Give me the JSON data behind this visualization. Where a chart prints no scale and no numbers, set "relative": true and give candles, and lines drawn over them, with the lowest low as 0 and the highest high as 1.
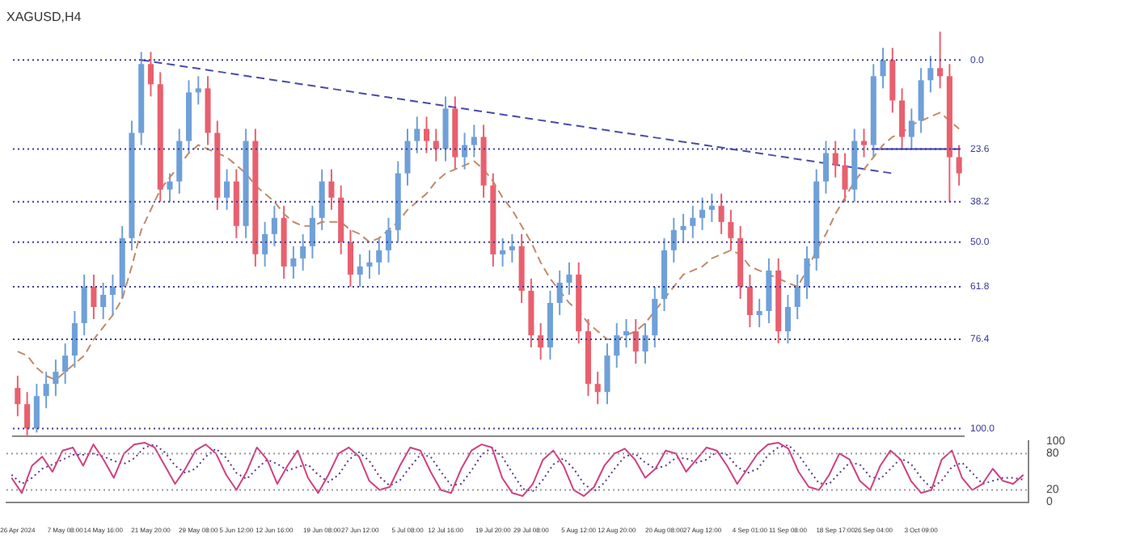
{
  "chart_data": [
    {
      "type": "candlestick",
      "title": "XAGUSD,H4",
      "relative": true,
      "tick_labels": "x",
      "categories": [
        "26 Apr 2024",
        null,
        null,
        null,
        null,
        "7 May 08:00",
        null,
        null,
        null,
        "14 May 16:00",
        null,
        null,
        null,
        null,
        "21 May 20:00",
        null,
        null,
        null,
        null,
        "29 May 08:00",
        null,
        null,
        null,
        "5 Jun 12:00",
        null,
        null,
        null,
        "12 Jun 16:00",
        null,
        null,
        null,
        null,
        "19 Jun 08:00",
        null,
        null,
        null,
        "27 Jun 12:00",
        null,
        null,
        null,
        null,
        "5 Jul 08:00",
        null,
        null,
        null,
        "12 Jul 16:00",
        null,
        null,
        null,
        null,
        "19 Jul 20:00",
        null,
        null,
        null,
        "29 Jul 08:00",
        null,
        null,
        null,
        null,
        "5 Aug 12:00",
        null,
        null,
        null,
        "12 Aug 20:00",
        null,
        null,
        null,
        null,
        "20 Aug 08:00",
        null,
        null,
        null,
        "27 Aug 12:00",
        null,
        null,
        null,
        null,
        "4 Sep 01:00",
        null,
        null,
        null,
        "11 Sep 08:00",
        null,
        null,
        null,
        null,
        "18 Sep 17:00",
        null,
        null,
        null,
        "26 Sep 04:00",
        null,
        null,
        null,
        null,
        "3 Oct 09:00",
        null,
        null,
        null,
        null
      ],
      "ohlc": [
        [
          0.12,
          0.15,
          0.05,
          0.08
        ],
        [
          0.08,
          0.11,
          0,
          0.02
        ],
        [
          0.02,
          0.13,
          0.01,
          0.1
        ],
        [
          0.1,
          0.16,
          0.07,
          0.13
        ],
        [
          0.13,
          0.19,
          0.1,
          0.16
        ],
        [
          0.16,
          0.23,
          0.13,
          0.2
        ],
        [
          0.2,
          0.31,
          0.17,
          0.28
        ],
        [
          0.28,
          0.4,
          0.25,
          0.37
        ],
        [
          0.37,
          0.4,
          0.29,
          0.32
        ],
        [
          0.32,
          0.38,
          0.29,
          0.35
        ],
        [
          0.35,
          0.4,
          0.3,
          0.37
        ],
        [
          0.37,
          0.52,
          0.34,
          0.49
        ],
        [
          0.49,
          0.78,
          0.46,
          0.75
        ],
        [
          0.75,
          0.95,
          0.72,
          0.92
        ],
        [
          0.92,
          0.95,
          0.84,
          0.87
        ],
        [
          0.87,
          0.9,
          0.58,
          0.61
        ],
        [
          0.61,
          0.65,
          0.58,
          0.63
        ],
        [
          0.63,
          0.76,
          0.6,
          0.73
        ],
        [
          0.73,
          0.88,
          0.7,
          0.85
        ],
        [
          0.85,
          0.89,
          0.82,
          0.86
        ],
        [
          0.86,
          0.89,
          0.72,
          0.75
        ],
        [
          0.75,
          0.78,
          0.56,
          0.59
        ],
        [
          0.59,
          0.66,
          0.56,
          0.63
        ],
        [
          0.63,
          0.66,
          0.49,
          0.52
        ],
        [
          0.52,
          0.76,
          0.49,
          0.73
        ],
        [
          0.73,
          0.76,
          0.42,
          0.45
        ],
        [
          0.45,
          0.53,
          0.42,
          0.5
        ],
        [
          0.5,
          0.57,
          0.47,
          0.54
        ],
        [
          0.54,
          0.57,
          0.39,
          0.42
        ],
        [
          0.42,
          0.47,
          0.39,
          0.44
        ],
        [
          0.44,
          0.5,
          0.41,
          0.47
        ],
        [
          0.47,
          0.57,
          0.44,
          0.54
        ],
        [
          0.54,
          0.66,
          0.51,
          0.63
        ],
        [
          0.63,
          0.66,
          0.56,
          0.59
        ],
        [
          0.59,
          0.62,
          0.45,
          0.48
        ],
        [
          0.48,
          0.51,
          0.37,
          0.4
        ],
        [
          0.4,
          0.45,
          0.37,
          0.42
        ],
        [
          0.42,
          0.46,
          0.39,
          0.43
        ],
        [
          0.43,
          0.49,
          0.4,
          0.46
        ],
        [
          0.46,
          0.54,
          0.43,
          0.51
        ],
        [
          0.51,
          0.68,
          0.48,
          0.65
        ],
        [
          0.65,
          0.76,
          0.62,
          0.73
        ],
        [
          0.73,
          0.79,
          0.7,
          0.76
        ],
        [
          0.76,
          0.79,
          0.7,
          0.73
        ],
        [
          0.73,
          0.76,
          0.68,
          0.71
        ],
        [
          0.71,
          0.84,
          0.68,
          0.81
        ],
        [
          0.81,
          0.84,
          0.66,
          0.69
        ],
        [
          0.69,
          0.75,
          0.66,
          0.72
        ],
        [
          0.72,
          0.77,
          0.69,
          0.74
        ],
        [
          0.74,
          0.77,
          0.59,
          0.62
        ],
        [
          0.62,
          0.65,
          0.42,
          0.45
        ],
        [
          0.45,
          0.49,
          0.42,
          0.46
        ],
        [
          0.46,
          0.5,
          0.43,
          0.47
        ],
        [
          0.47,
          0.5,
          0.33,
          0.36
        ],
        [
          0.36,
          0.39,
          0.22,
          0.25
        ],
        [
          0.25,
          0.28,
          0.19,
          0.22
        ],
        [
          0.22,
          0.36,
          0.19,
          0.33
        ],
        [
          0.33,
          0.41,
          0.3,
          0.38
        ],
        [
          0.38,
          0.43,
          0.35,
          0.4
        ],
        [
          0.4,
          0.43,
          0.23,
          0.26
        ],
        [
          0.26,
          0.29,
          0.1,
          0.13
        ],
        [
          0.13,
          0.16,
          0.08,
          0.11
        ],
        [
          0.11,
          0.23,
          0.08,
          0.2
        ],
        [
          0.2,
          0.28,
          0.17,
          0.25
        ],
        [
          0.25,
          0.29,
          0.22,
          0.26
        ],
        [
          0.26,
          0.29,
          0.18,
          0.21
        ],
        [
          0.21,
          0.28,
          0.18,
          0.25
        ],
        [
          0.25,
          0.37,
          0.22,
          0.34
        ],
        [
          0.34,
          0.49,
          0.31,
          0.46
        ],
        [
          0.46,
          0.54,
          0.43,
          0.51
        ],
        [
          0.51,
          0.55,
          0.48,
          0.52
        ],
        [
          0.52,
          0.57,
          0.49,
          0.54
        ],
        [
          0.54,
          0.59,
          0.51,
          0.56
        ],
        [
          0.56,
          0.6,
          0.53,
          0.57
        ],
        [
          0.57,
          0.6,
          0.5,
          0.53
        ],
        [
          0.53,
          0.56,
          0.46,
          0.49
        ],
        [
          0.49,
          0.52,
          0.34,
          0.37
        ],
        [
          0.37,
          0.4,
          0.27,
          0.3
        ],
        [
          0.3,
          0.34,
          0.27,
          0.31
        ],
        [
          0.31,
          0.44,
          0.28,
          0.41
        ],
        [
          0.41,
          0.44,
          0.23,
          0.26
        ],
        [
          0.26,
          0.35,
          0.23,
          0.32
        ],
        [
          0.32,
          0.4,
          0.29,
          0.37
        ],
        [
          0.37,
          0.47,
          0.34,
          0.44
        ],
        [
          0.44,
          0.66,
          0.41,
          0.63
        ],
        [
          0.63,
          0.73,
          0.6,
          0.7
        ],
        [
          0.7,
          0.73,
          0.64,
          0.67
        ],
        [
          0.67,
          0.7,
          0.58,
          0.61
        ],
        [
          0.61,
          0.76,
          0.58,
          0.73
        ],
        [
          0.73,
          0.76,
          0.69,
          0.72
        ],
        [
          0.72,
          0.92,
          0.69,
          0.89
        ],
        [
          0.89,
          0.96,
          0.86,
          0.93
        ],
        [
          0.93,
          0.96,
          0.8,
          0.83
        ],
        [
          0.83,
          0.86,
          0.71,
          0.74
        ],
        [
          0.74,
          0.81,
          0.71,
          0.78
        ],
        [
          0.78,
          0.91,
          0.75,
          0.88
        ],
        [
          0.88,
          0.94,
          0.85,
          0.91
        ],
        [
          0.91,
          1,
          0.86,
          0.89
        ],
        [
          0.89,
          0.92,
          0.58,
          0.69
        ],
        [
          0.69,
          0.72,
          0.62,
          0.65
        ]
      ],
      "colors": [
        "#e8606e",
        "#e8606e",
        "#6fa0d8",
        "#6fa0d8",
        "#6fa0d8",
        "#6fa0d8",
        "#6fa0d8",
        "#6fa0d8",
        "#e8606e",
        "#6fa0d8",
        "#6fa0d8",
        "#6fa0d8",
        "#6fa0d8",
        "#6fa0d8",
        "#e8606e",
        "#e8606e",
        "#6fa0d8",
        "#6fa0d8",
        "#6fa0d8",
        "#6fa0d8",
        "#e8606e",
        "#e8606e",
        "#6fa0d8",
        "#e8606e",
        "#6fa0d8",
        "#e8606e",
        "#6fa0d8",
        "#6fa0d8",
        "#e8606e",
        "#6fa0d8",
        "#6fa0d8",
        "#6fa0d8",
        "#6fa0d8",
        "#e8606e",
        "#e8606e",
        "#e8606e",
        "#6fa0d8",
        "#6fa0d8",
        "#6fa0d8",
        "#6fa0d8",
        "#6fa0d8",
        "#6fa0d8",
        "#6fa0d8",
        "#e8606e",
        "#e8606e",
        "#6fa0d8",
        "#e8606e",
        "#6fa0d8",
        "#6fa0d8",
        "#e8606e",
        "#e8606e",
        "#6fa0d8",
        "#6fa0d8",
        "#e8606e",
        "#e8606e",
        "#e8606e",
        "#6fa0d8",
        "#6fa0d8",
        "#6fa0d8",
        "#e8606e",
        "#e8606e",
        "#e8606e",
        "#6fa0d8",
        "#6fa0d8",
        "#6fa0d8",
        "#e8606e",
        "#6fa0d8",
        "#6fa0d8",
        "#6fa0d8",
        "#6fa0d8",
        "#6fa0d8",
        "#6fa0d8",
        "#6fa0d8",
        "#6fa0d8",
        "#e8606e",
        "#e8606e",
        "#e8606e",
        "#e8606e",
        "#6fa0d8",
        "#6fa0d8",
        "#e8606e",
        "#6fa0d8",
        "#6fa0d8",
        "#6fa0d8",
        "#6fa0d8",
        "#6fa0d8",
        "#e8606e",
        "#e8606e",
        "#6fa0d8",
        "#e8606e",
        "#6fa0d8",
        "#6fa0d8",
        "#e8606e",
        "#e8606e",
        "#6fa0d8",
        "#6fa0d8",
        "#6fa0d8",
        "#e8606e",
        "#e8606e",
        "#e8606e"
      ],
      "series": [
        {
          "type": "line",
          "color": "#c08a6a",
          "line_style": "dashed",
          "values": [
            0.21,
            0.2,
            0.17,
            0.15,
            0.14,
            0.16,
            0.18,
            0.2,
            0.24,
            0.27,
            0.3,
            0.34,
            0.42,
            0.51,
            0.56,
            0.61,
            0.64,
            0.67,
            0.7,
            0.72,
            0.71,
            0.7,
            0.69,
            0.67,
            0.65,
            0.62,
            0.6,
            0.58,
            0.55,
            0.53,
            0.52,
            0.52,
            0.53,
            0.53,
            0.53,
            0.51,
            0.5,
            0.48,
            0.49,
            0.51,
            0.53,
            0.56,
            0.58,
            0.6,
            0.63,
            0.65,
            0.66,
            0.67,
            0.68,
            0.66,
            0.63,
            0.59,
            0.56,
            0.52,
            0.48,
            0.43,
            0.39,
            0.36,
            0.33,
            0.31,
            0.28,
            0.26,
            0.24,
            0.24,
            0.25,
            0.26,
            0.28,
            0.31,
            0.34,
            0.37,
            0.4,
            0.41,
            0.42,
            0.44,
            0.45,
            0.46,
            0.45,
            0.42,
            0.41,
            0.4,
            0.39,
            0.38,
            0.37,
            0.41,
            0.46,
            0.5,
            0.55,
            0.59,
            0.63,
            0.66,
            0.69,
            0.72,
            0.74,
            0.75,
            0.77,
            0.78,
            0.79,
            0.8,
            0.78,
            0.76
          ]
        },
        {
          "type": "line",
          "color": "#4a4aa8",
          "line_style": "dashed",
          "values": [
            null,
            null,
            null,
            null,
            null,
            null,
            null,
            null,
            null,
            null,
            null,
            null,
            null,
            0.93,
            null,
            null,
            null,
            null,
            null,
            null,
            null,
            null,
            null,
            null,
            null,
            null,
            null,
            null,
            null,
            null,
            null,
            null,
            null,
            null,
            null,
            null,
            null,
            null,
            null,
            null,
            null,
            null,
            null,
            null,
            null,
            null,
            null,
            null,
            null,
            null,
            null,
            null,
            null,
            null,
            null,
            null,
            null,
            null,
            null,
            null,
            null,
            null,
            null,
            null,
            null,
            null,
            null,
            null,
            null,
            null,
            null,
            null,
            null,
            null,
            null,
            null,
            null,
            null,
            null,
            null,
            null,
            null,
            null,
            null,
            null,
            null,
            null,
            null,
            null,
            null,
            null,
            null,
            0.65,
            null,
            null,
            null,
            null,
            null,
            null,
            null
          ]
        },
        {
          "type": "line",
          "color": "#3b3bbf",
          "values": [
            null,
            null,
            null,
            null,
            null,
            null,
            null,
            null,
            null,
            null,
            null,
            null,
            null,
            null,
            null,
            null,
            null,
            null,
            null,
            null,
            null,
            null,
            null,
            null,
            null,
            null,
            null,
            null,
            null,
            null,
            null,
            null,
            null,
            null,
            null,
            null,
            null,
            null,
            null,
            null,
            null,
            null,
            null,
            null,
            null,
            null,
            null,
            null,
            null,
            null,
            null,
            null,
            null,
            null,
            null,
            null,
            null,
            null,
            null,
            null,
            null,
            null,
            null,
            null,
            null,
            null,
            null,
            null,
            null,
            null,
            null,
            null,
            null,
            null,
            null,
            null,
            null,
            null,
            null,
            null,
            null,
            null,
            null,
            null,
            null,
            null,
            null,
            null,
            null,
            null,
            0.71,
            null,
            null,
            null,
            null,
            null,
            null,
            null,
            null,
            0.71
          ]
        }
      ],
      "ref_lines": [
        {
          "axis": "y",
          "value": 0.93,
          "color": "#3a3a9a",
          "line_style": "dotted"
        },
        {
          "axis": "y",
          "value": 0.71,
          "color": "#3a3a9a",
          "line_style": "dotted"
        },
        {
          "axis": "y",
          "value": 0.58,
          "color": "#3a3a9a",
          "line_style": "dotted"
        },
        {
          "axis": "y",
          "value": 0.48,
          "color": "#3a3a9a",
          "line_style": "dotted"
        },
        {
          "axis": "y",
          "value": 0.37,
          "color": "#3a3a9a",
          "line_style": "dotted"
        },
        {
          "axis": "y",
          "value": 0.24,
          "color": "#3a3a9a",
          "line_style": "dotted"
        },
        {
          "axis": "y",
          "value": 0.02,
          "color": "#3a3a9a",
          "line_style": "dotted"
        }
      ],
      "annotations": [
        {
          "text": "0.0",
          "y": 0.93
        },
        {
          "text": "23.6",
          "y": 0.71
        },
        {
          "text": "38.2",
          "y": 0.58
        },
        {
          "text": "50.0",
          "y": 0.48
        },
        {
          "text": "61.8",
          "y": 0.37
        },
        {
          "text": "76.4",
          "y": 0.24
        },
        {
          "text": "100.0",
          "y": 0.02
        }
      ]
    },
    {
      "type": "line",
      "tick_labels": "y",
      "categories": [
        null,
        null,
        null,
        null,
        null,
        null,
        null,
        null,
        null,
        null,
        null,
        null,
        null,
        null,
        null,
        null,
        null,
        null,
        null,
        null,
        null,
        null,
        null,
        null,
        null,
        null,
        null,
        null,
        null,
        null,
        null,
        null,
        null,
        null,
        null,
        null,
        null,
        null,
        null,
        null,
        null,
        null,
        null,
        null,
        null,
        null,
        null,
        null,
        null,
        null,
        null,
        null,
        null,
        null,
        null,
        null,
        null,
        null,
        null,
        null,
        null,
        null,
        null,
        null,
        null,
        null,
        null,
        null,
        null,
        null,
        null,
        null,
        null,
        null,
        null,
        null,
        null,
        null,
        null,
        null,
        null,
        null,
        null,
        null,
        null,
        null,
        null,
        null,
        null,
        null,
        null,
        null,
        null,
        null,
        null,
        null,
        null,
        null,
        null,
        null
      ],
      "ylim": [
        0,
        100
      ],
      "yticks": [
        0,
        20,
        80,
        100
      ],
      "series": [
        {
          "color": "#d04080",
          "values": [
            40,
            15,
            60,
            75,
            50,
            85,
            90,
            60,
            95,
            70,
            40,
            80,
            95,
            98,
            90,
            60,
            30,
            55,
            85,
            95,
            80,
            45,
            20,
            50,
            90,
            70,
            30,
            60,
            85,
            40,
            15,
            45,
            80,
            90,
            75,
            35,
            20,
            25,
            60,
            90,
            85,
            50,
            20,
            15,
            55,
            85,
            95,
            90,
            40,
            15,
            10,
            30,
            70,
            85,
            60,
            20,
            10,
            25,
            60,
            80,
            88,
            70,
            40,
            55,
            85,
            80,
            50,
            70,
            90,
            85,
            60,
            30,
            55,
            80,
            95,
            98,
            88,
            50,
            25,
            20,
            45,
            80,
            70,
            35,
            20,
            60,
            85,
            70,
            35,
            15,
            20,
            70,
            85,
            40,
            20,
            30,
            55,
            35,
            30,
            45
          ]
        },
        {
          "color": "#5a3a8a",
          "line_style": "dotted",
          "values": [
            45,
            30,
            40,
            55,
            62,
            70,
            78,
            78,
            80,
            75,
            68,
            63,
            72,
            90,
            95,
            82,
            60,
            48,
            55,
            75,
            88,
            73,
            48,
            38,
            55,
            70,
            63,
            52,
            58,
            62,
            45,
            33,
            45,
            70,
            82,
            68,
            42,
            27,
            36,
            58,
            78,
            75,
            50,
            28,
            30,
            52,
            78,
            90,
            75,
            48,
            22,
            18,
            37,
            62,
            72,
            55,
            30,
            18,
            32,
            55,
            75,
            80,
            65,
            55,
            60,
            73,
            72,
            65,
            70,
            83,
            78,
            58,
            48,
            55,
            77,
            90,
            94,
            78,
            54,
            31,
            30,
            48,
            65,
            62,
            42,
            38,
            55,
            72,
            63,
            40,
            23,
            35,
            58,
            65,
            48,
            30,
            35,
            40,
            40,
            37
          ]
        }
      ],
      "ref_lines": [
        {
          "axis": "y",
          "value": 20,
          "color": "#999999",
          "line_style": "dotted"
        },
        {
          "axis": "y",
          "value": 80,
          "color": "#999999",
          "line_style": "dotted"
        }
      ]
    }
  ]
}
